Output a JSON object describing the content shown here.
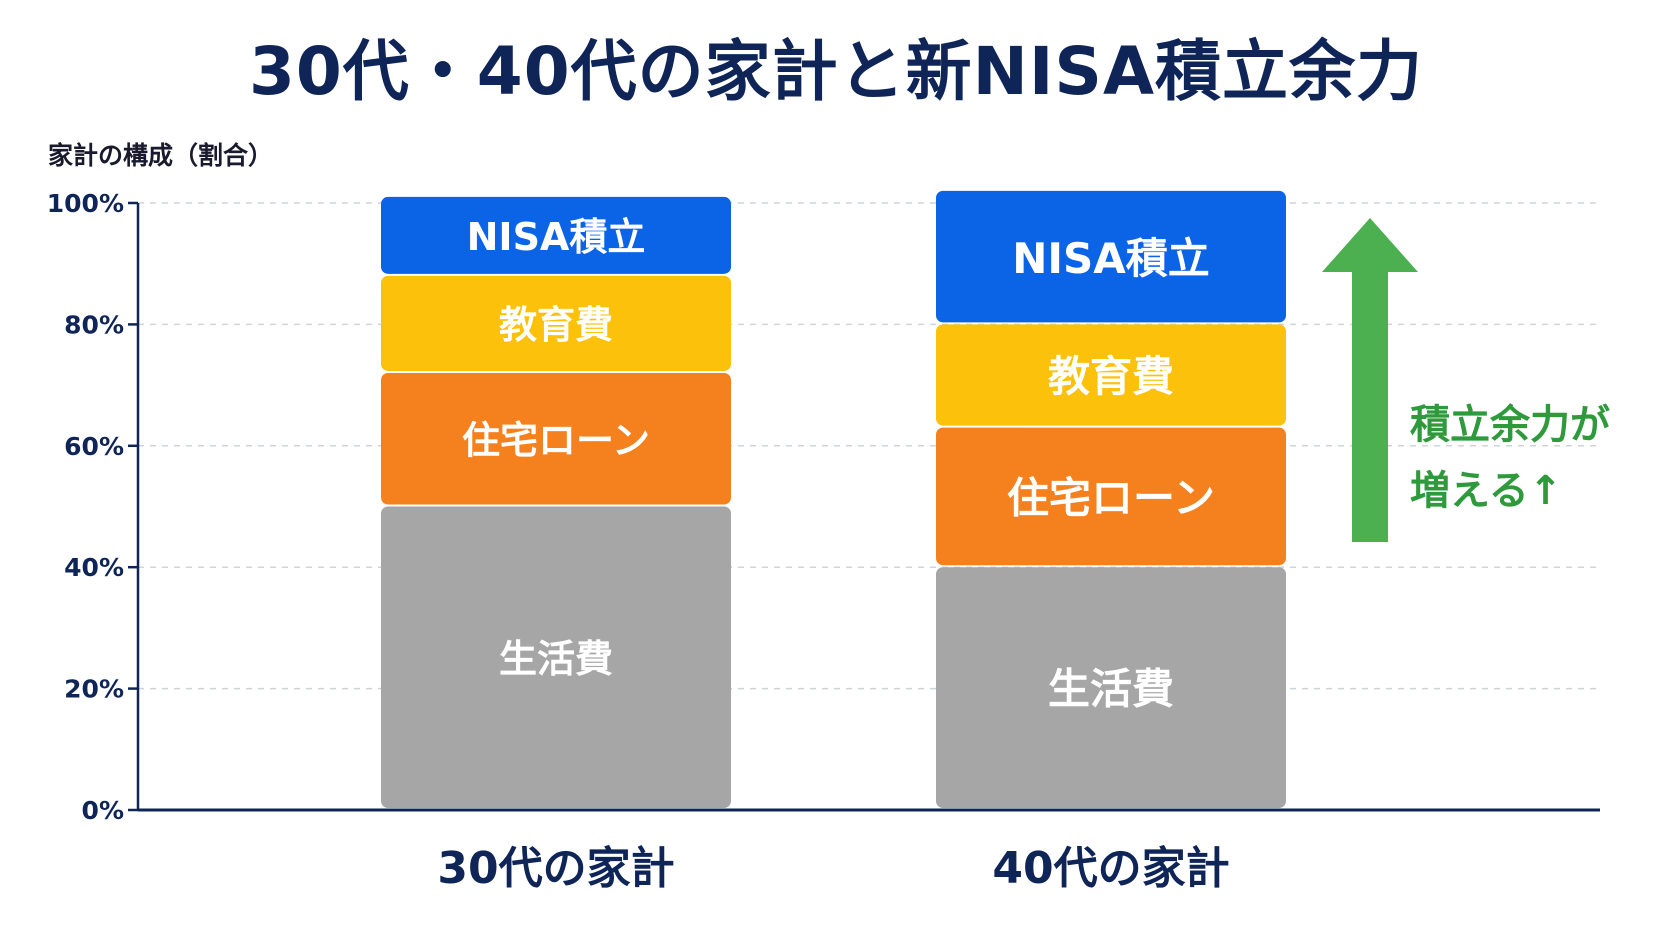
{
  "title": "30代・40代の家計と新NISA積立余力",
  "ylabel": "家計の構成（割合）",
  "annotation": {
    "line1": "積立余力が",
    "line2": "増える↑",
    "color": "#4caf50",
    "text_color": "#2e9a3c"
  },
  "chart_data": {
    "type": "bar",
    "stacked": true,
    "categories": [
      "30代の家計",
      "40代の家計"
    ],
    "series": [
      {
        "name": "生活費",
        "values": [
          50,
          40
        ],
        "color": "#a6a6a6"
      },
      {
        "name": "住宅ローン",
        "values": [
          22,
          23
        ],
        "color": "#f5801e"
      },
      {
        "name": "教育費",
        "values": [
          16,
          17
        ],
        "color": "#fcc10a"
      },
      {
        "name": "NISA積立",
        "values": [
          13,
          22
        ],
        "color": "#0b63e5"
      }
    ],
    "ylim": [
      0,
      100
    ],
    "yticks": [
      "0%",
      "20%",
      "40%",
      "60%",
      "80%",
      "100%"
    ],
    "ytick_values": [
      0,
      20,
      40,
      60,
      80,
      100
    ],
    "grid": true,
    "legend": "none"
  }
}
